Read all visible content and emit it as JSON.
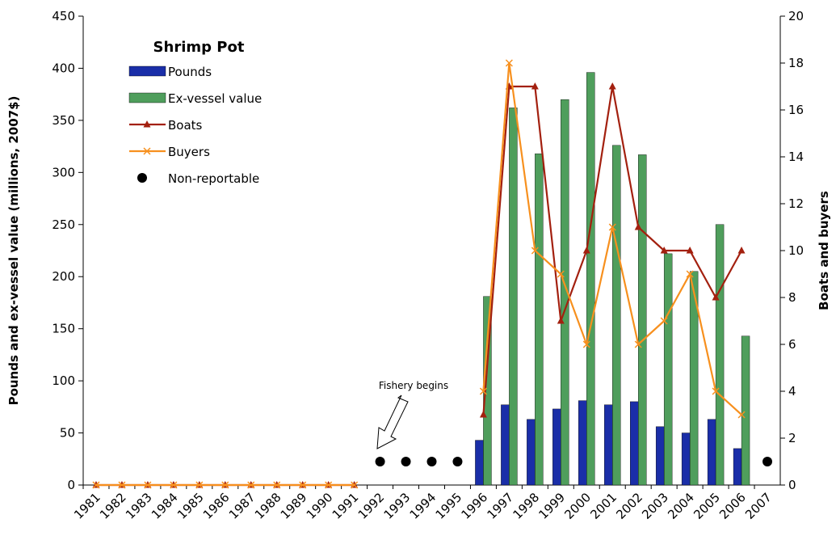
{
  "chart_data": {
    "type": "bar",
    "legend_title": "Shrimp Pot",
    "y_label": "Pounds and ex-vessel value (millions, 2007$)",
    "y2_label": "Boats and buyers",
    "annotation": "Fishery begins",
    "categories": [
      "1981",
      "1982",
      "1983",
      "1984",
      "1985",
      "1986",
      "1987",
      "1988",
      "1989",
      "1990",
      "1991",
      "1992",
      "1993",
      "1994",
      "1995",
      "1996",
      "1997",
      "1998",
      "1999",
      "2000",
      "2001",
      "2002",
      "2003",
      "2004",
      "2005",
      "2006",
      "2007"
    ],
    "ylim": [
      0,
      450
    ],
    "yticks": [
      0,
      50,
      100,
      150,
      200,
      250,
      300,
      350,
      400,
      450
    ],
    "y2lim": [
      0,
      20
    ],
    "y2ticks": [
      0,
      2,
      4,
      6,
      8,
      10,
      12,
      14,
      16,
      18,
      20
    ],
    "series": [
      {
        "name": "Pounds",
        "type": "bar",
        "color": "#1a2ea8",
        "values": [
          null,
          null,
          null,
          null,
          null,
          null,
          null,
          null,
          null,
          null,
          null,
          null,
          null,
          null,
          null,
          43,
          77,
          63,
          73,
          81,
          77,
          80,
          56,
          50,
          63,
          35,
          null
        ]
      },
      {
        "name": "Ex-vessel value",
        "type": "bar",
        "color": "#4f9e5c",
        "values": [
          null,
          null,
          null,
          null,
          null,
          null,
          null,
          null,
          null,
          null,
          null,
          null,
          null,
          null,
          null,
          181,
          362,
          318,
          370,
          396,
          326,
          317,
          222,
          205,
          250,
          143,
          null
        ]
      },
      {
        "name": "Boats",
        "type": "line",
        "axis": "y2",
        "marker": "triangle",
        "color": "#a3200f",
        "values": [
          0,
          0,
          0,
          0,
          0,
          0,
          0,
          0,
          0,
          0,
          0,
          null,
          null,
          null,
          null,
          3,
          17,
          17,
          7,
          10,
          17,
          11,
          10,
          10,
          8,
          10,
          null
        ]
      },
      {
        "name": "Buyers",
        "type": "line",
        "axis": "y2",
        "marker": "x",
        "color": "#f7901e",
        "values": [
          0,
          0,
          0,
          0,
          0,
          0,
          0,
          0,
          0,
          0,
          0,
          null,
          null,
          null,
          null,
          4,
          18,
          10,
          9,
          6,
          11,
          6,
          7,
          9,
          4,
          3,
          null
        ]
      },
      {
        "name": "Non-reportable",
        "type": "scatter",
        "axis": "y2",
        "color": "#000000",
        "values": [
          null,
          null,
          null,
          null,
          null,
          null,
          null,
          null,
          null,
          null,
          null,
          1,
          1,
          1,
          1,
          null,
          null,
          null,
          null,
          null,
          null,
          null,
          null,
          null,
          null,
          null,
          1
        ]
      }
    ]
  }
}
